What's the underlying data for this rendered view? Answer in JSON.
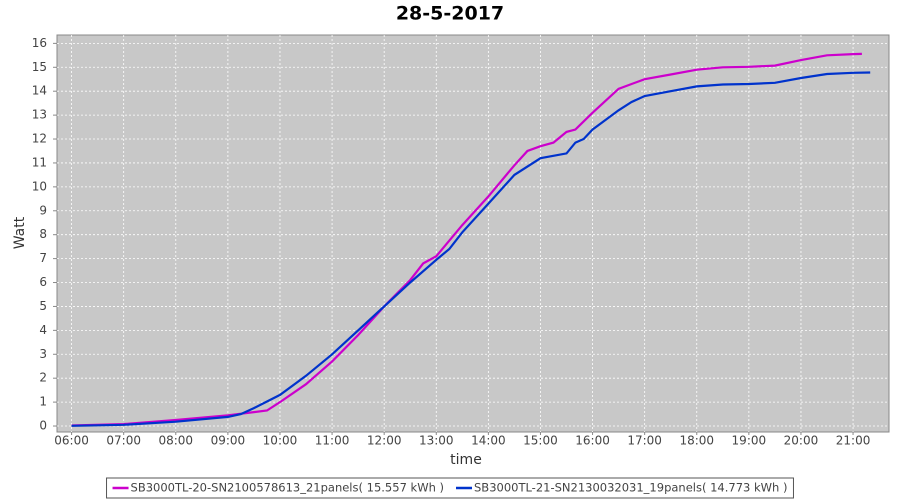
{
  "chart_data": {
    "type": "line",
    "title": "28-5-2017",
    "x_label": "time",
    "y_label": "Watt",
    "xlim": [
      5.72,
      21.69
    ],
    "ylim": [
      -0.25,
      16.35
    ],
    "xticks": [
      {
        "value": 6,
        "label": "06:00"
      },
      {
        "value": 7,
        "label": "07:00"
      },
      {
        "value": 8,
        "label": "08:00"
      },
      {
        "value": 9,
        "label": "09:00"
      },
      {
        "value": 10,
        "label": "10:00"
      },
      {
        "value": 11,
        "label": "11:00"
      },
      {
        "value": 12,
        "label": "12:00"
      },
      {
        "value": 13,
        "label": "13:00"
      },
      {
        "value": 14,
        "label": "14:00"
      },
      {
        "value": 15,
        "label": "15:00"
      },
      {
        "value": 16,
        "label": "16:00"
      },
      {
        "value": 17,
        "label": "17:00"
      },
      {
        "value": 18,
        "label": "18:00"
      },
      {
        "value": 19,
        "label": "19:00"
      },
      {
        "value": 20,
        "label": "20:00"
      },
      {
        "value": 21,
        "label": "21:00"
      }
    ],
    "yticks": [
      0,
      1,
      2,
      3,
      4,
      5,
      6,
      7,
      8,
      9,
      10,
      11,
      12,
      13,
      14,
      15,
      16
    ],
    "grid": true,
    "series": [
      {
        "name": "SB3000TL-20-SN2100578613_21panels( 15.557 kWh )",
        "color": "#cc00cc",
        "x": [
          6,
          7,
          8,
          9,
          9.5,
          9.75,
          10,
          10.5,
          11,
          11.5,
          12,
          12.5,
          12.75,
          13,
          13.5,
          14,
          14.5,
          14.75,
          15,
          15.25,
          15.5,
          15.67,
          16,
          16.5,
          16.75,
          17,
          17.5,
          18,
          18.5,
          19,
          19.5,
          20,
          20.5,
          21,
          21.17
        ],
        "values": [
          0.02,
          0.08,
          0.25,
          0.45,
          0.58,
          0.65,
          1.0,
          1.75,
          2.7,
          3.8,
          5.0,
          6.1,
          6.8,
          7.1,
          8.4,
          9.6,
          10.9,
          11.5,
          11.7,
          11.85,
          12.3,
          12.4,
          13.1,
          14.1,
          14.3,
          14.5,
          14.7,
          14.9,
          15.0,
          15.02,
          15.07,
          15.3,
          15.5,
          15.55,
          15.56
        ]
      },
      {
        "name": "SB3000TL-21-SN2130032031_19panels( 14.773 kWh )",
        "color": "#0033cc",
        "x": [
          6,
          7,
          8,
          9,
          9.25,
          9.5,
          10,
          10.5,
          11,
          11.5,
          12,
          12.5,
          13,
          13.25,
          13.5,
          14,
          14.5,
          15,
          15.5,
          15.67,
          15.83,
          16,
          16.5,
          16.75,
          17,
          17.5,
          18,
          18.5,
          19,
          19.5,
          20,
          20.5,
          21,
          21.33
        ],
        "values": [
          0.01,
          0.05,
          0.18,
          0.38,
          0.5,
          0.75,
          1.3,
          2.1,
          3.0,
          4.0,
          5.0,
          6.0,
          6.95,
          7.4,
          8.1,
          9.3,
          10.5,
          11.2,
          11.4,
          11.85,
          12.0,
          12.4,
          13.2,
          13.55,
          13.8,
          14.0,
          14.2,
          14.28,
          14.3,
          14.35,
          14.55,
          14.72,
          14.77,
          14.78
        ]
      }
    ]
  }
}
